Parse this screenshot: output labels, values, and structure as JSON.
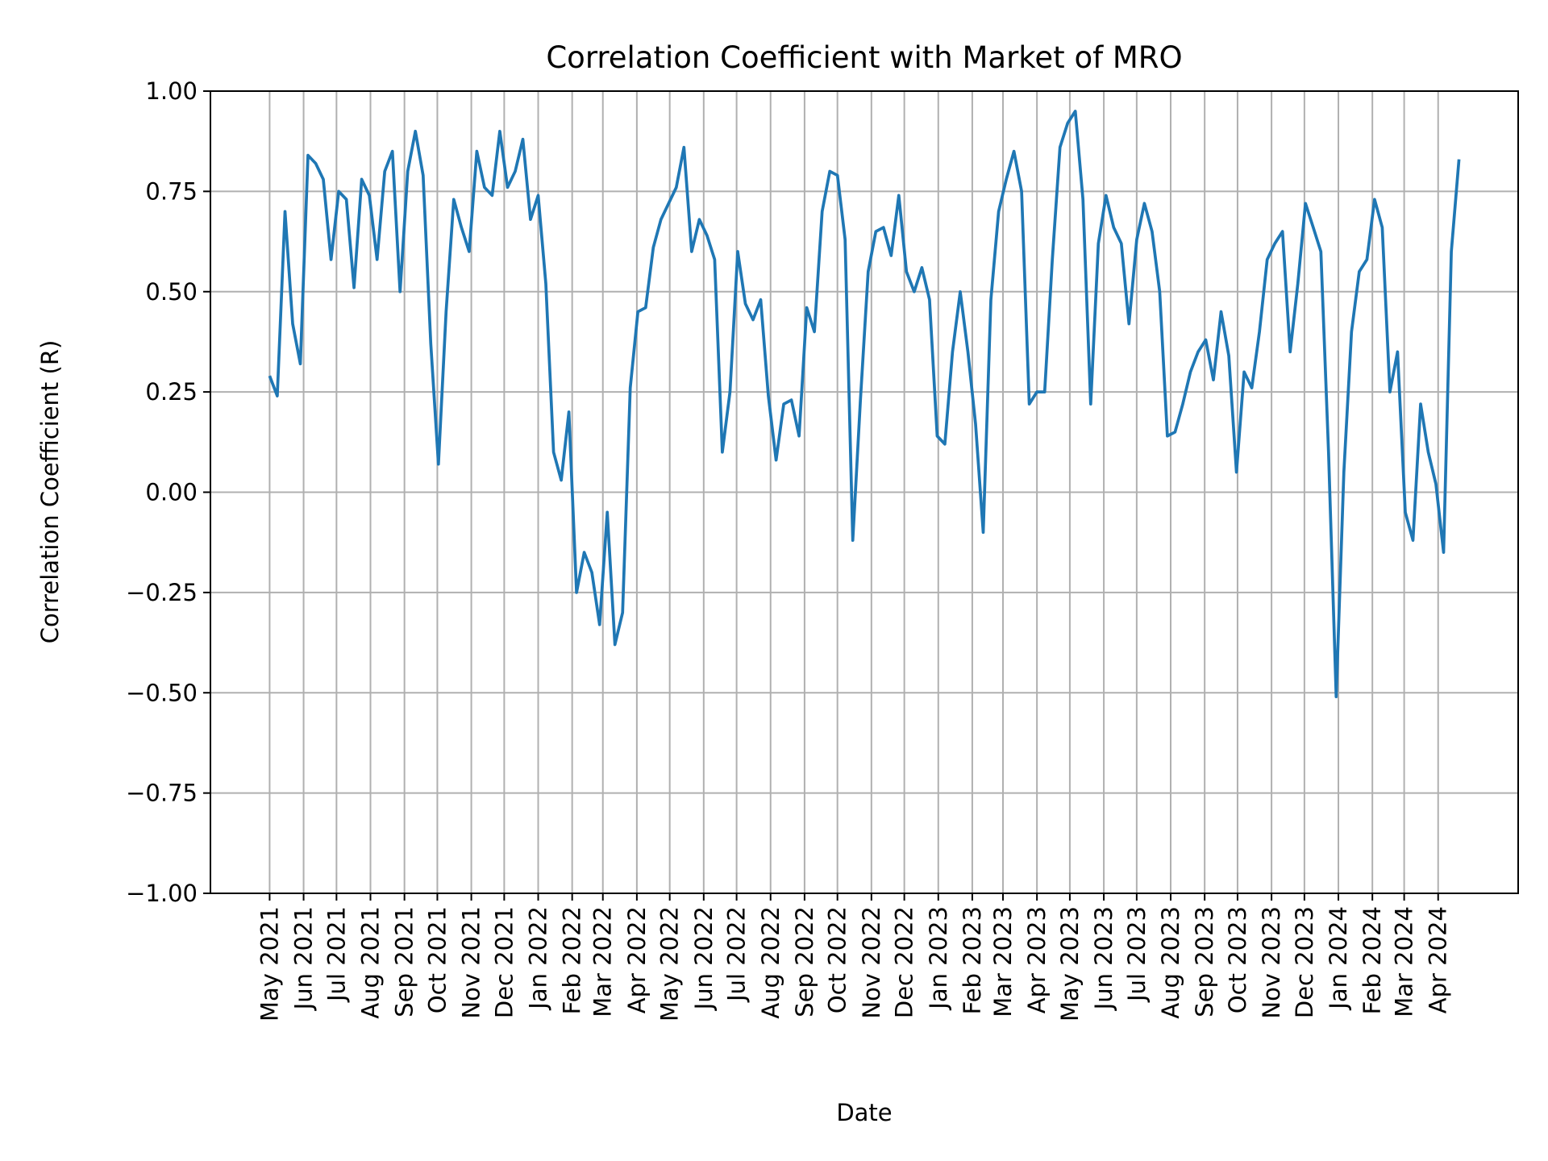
{
  "chart_data": {
    "type": "line",
    "title": "Correlation Coefficient with Market of MRO",
    "xlabel": "Date",
    "ylabel": "Correlation Coefficient (R)",
    "ylim": [
      -1.0,
      1.0
    ],
    "xlim": [
      "2021-03-08",
      "2024-06-13"
    ],
    "yticks": [
      -1.0,
      -0.75,
      -0.5,
      -0.25,
      0.0,
      0.25,
      0.5,
      0.75,
      1.0
    ],
    "ytick_labels": [
      "−1.00",
      "−0.75",
      "−0.50",
      "−0.25",
      "0.00",
      "0.25",
      "0.50",
      "0.75",
      "1.00"
    ],
    "xticks": [
      "2021-05-01",
      "2021-06-01",
      "2021-07-01",
      "2021-08-01",
      "2021-09-01",
      "2021-10-01",
      "2021-11-01",
      "2021-12-01",
      "2022-01-01",
      "2022-02-01",
      "2022-03-01",
      "2022-04-01",
      "2022-05-01",
      "2022-06-01",
      "2022-07-01",
      "2022-08-01",
      "2022-09-01",
      "2022-10-01",
      "2022-11-01",
      "2022-12-01",
      "2023-01-01",
      "2023-02-01",
      "2023-03-01",
      "2023-04-01",
      "2023-05-01",
      "2023-06-01",
      "2023-07-01",
      "2023-08-01",
      "2023-09-01",
      "2023-10-01",
      "2023-11-01",
      "2023-12-01",
      "2024-01-01",
      "2024-02-01",
      "2024-03-01",
      "2024-04-01"
    ],
    "xtick_labels": [
      "May 2021",
      "Jun 2021",
      "Jul 2021",
      "Aug 2021",
      "Sep 2021",
      "Oct 2021",
      "Nov 2021",
      "Dec 2021",
      "Jan 2022",
      "Feb 2022",
      "Mar 2022",
      "Apr 2022",
      "May 2022",
      "Jun 2022",
      "Jul 2022",
      "Aug 2022",
      "Sep 2022",
      "Oct 2022",
      "Nov 2022",
      "Dec 2022",
      "Jan 2023",
      "Feb 2023",
      "Mar 2023",
      "Apr 2023",
      "May 2023",
      "Jun 2023",
      "Jul 2023",
      "Aug 2023",
      "Sep 2023",
      "Oct 2023",
      "Nov 2023",
      "Dec 2023",
      "Jan 2024",
      "Feb 2024",
      "Mar 2024",
      "Apr 2024"
    ],
    "grid": true,
    "line_color": "#1f77b4",
    "grid_color": "#b0b0b0",
    "series": [
      {
        "x": [
          "2021-05-01",
          "2021-05-08",
          "2021-05-15",
          "2021-05-22",
          "2021-05-29",
          "2021-06-05",
          "2021-06-12",
          "2021-06-19",
          "2021-06-26",
          "2021-07-03",
          "2021-07-10",
          "2021-07-17",
          "2021-07-24",
          "2021-07-31",
          "2021-08-07",
          "2021-08-14",
          "2021-08-21",
          "2021-08-28",
          "2021-09-04",
          "2021-09-11",
          "2021-09-18",
          "2021-09-25",
          "2021-10-02",
          "2021-10-09",
          "2021-10-16",
          "2021-10-23",
          "2021-10-30",
          "2021-11-06",
          "2021-11-13",
          "2021-11-20",
          "2021-11-27",
          "2021-12-04",
          "2021-12-11",
          "2021-12-18",
          "2021-12-25",
          "2022-01-01",
          "2022-01-08",
          "2022-01-15",
          "2022-01-22",
          "2022-01-29",
          "2022-02-05",
          "2022-02-12",
          "2022-02-19",
          "2022-02-26",
          "2022-03-05",
          "2022-03-12",
          "2022-03-19",
          "2022-03-26",
          "2022-04-02",
          "2022-04-09",
          "2022-04-16",
          "2022-04-23",
          "2022-04-30",
          "2022-05-07",
          "2022-05-14",
          "2022-05-21",
          "2022-05-28",
          "2022-06-04",
          "2022-06-11",
          "2022-06-18",
          "2022-06-25",
          "2022-07-02",
          "2022-07-09",
          "2022-07-16",
          "2022-07-23",
          "2022-07-30",
          "2022-08-06",
          "2022-08-13",
          "2022-08-20",
          "2022-08-27",
          "2022-09-03",
          "2022-09-10",
          "2022-09-17",
          "2022-09-24",
          "2022-10-01",
          "2022-10-08",
          "2022-10-15",
          "2022-10-22",
          "2022-10-29",
          "2022-11-05",
          "2022-11-12",
          "2022-11-19",
          "2022-11-26",
          "2022-12-03",
          "2022-12-10",
          "2022-12-17",
          "2022-12-24",
          "2022-12-31",
          "2023-01-07",
          "2023-01-14",
          "2023-01-21",
          "2023-01-28",
          "2023-02-04",
          "2023-02-11",
          "2023-02-18",
          "2023-02-25",
          "2023-03-04",
          "2023-03-11",
          "2023-03-18",
          "2023-03-25",
          "2023-04-01",
          "2023-04-08",
          "2023-04-15",
          "2023-04-22",
          "2023-04-29",
          "2023-05-06",
          "2023-05-13",
          "2023-05-20",
          "2023-05-27",
          "2023-06-03",
          "2023-06-10",
          "2023-06-17",
          "2023-06-24",
          "2023-07-01",
          "2023-07-08",
          "2023-07-15",
          "2023-07-22",
          "2023-07-29",
          "2023-08-05",
          "2023-08-12",
          "2023-08-19",
          "2023-08-26",
          "2023-09-02",
          "2023-09-09",
          "2023-09-16",
          "2023-09-23",
          "2023-09-30",
          "2023-10-07",
          "2023-10-14",
          "2023-10-21",
          "2023-10-28",
          "2023-11-04",
          "2023-11-11",
          "2023-11-18",
          "2023-11-25",
          "2023-12-02",
          "2023-12-09",
          "2023-12-16",
          "2023-12-23",
          "2023-12-30",
          "2024-01-06",
          "2024-01-13",
          "2024-01-20",
          "2024-01-27",
          "2024-02-03",
          "2024-02-10",
          "2024-02-17",
          "2024-02-24",
          "2024-03-02",
          "2024-03-09",
          "2024-03-16",
          "2024-03-23",
          "2024-03-30",
          "2024-04-06",
          "2024-04-13",
          "2024-04-20"
        ],
        "y": [
          0.29,
          0.24,
          0.7,
          0.42,
          0.32,
          0.84,
          0.82,
          0.78,
          0.58,
          0.75,
          0.73,
          0.51,
          0.78,
          0.74,
          0.58,
          0.8,
          0.85,
          0.5,
          0.8,
          0.9,
          0.79,
          0.37,
          0.07,
          0.45,
          0.73,
          0.66,
          0.6,
          0.85,
          0.76,
          0.74,
          0.9,
          0.76,
          0.8,
          0.88,
          0.68,
          0.74,
          0.52,
          0.1,
          0.03,
          0.2,
          -0.25,
          -0.15,
          -0.2,
          -0.33,
          -0.05,
          -0.38,
          -0.3,
          0.26,
          0.45,
          0.46,
          0.61,
          0.68,
          0.72,
          0.76,
          0.86,
          0.6,
          0.68,
          0.64,
          0.58,
          0.1,
          0.25,
          0.6,
          0.47,
          0.43,
          0.48,
          0.24,
          0.08,
          0.22,
          0.23,
          0.14,
          0.46,
          0.4,
          0.7,
          0.8,
          0.79,
          0.63,
          -0.12,
          0.23,
          0.55,
          0.65,
          0.66,
          0.59,
          0.74,
          0.55,
          0.5,
          0.56,
          0.48,
          0.14,
          0.12,
          0.35,
          0.5,
          0.35,
          0.17,
          -0.1,
          0.48,
          0.7,
          0.78,
          0.85,
          0.75,
          0.22,
          0.25,
          0.25,
          0.58,
          0.86,
          0.92,
          0.95,
          0.73,
          0.22,
          0.62,
          0.74,
          0.66,
          0.62,
          0.42,
          0.63,
          0.72,
          0.65,
          0.5,
          0.14,
          0.15,
          0.22,
          0.3,
          0.35,
          0.38,
          0.28,
          0.45,
          0.34,
          0.05,
          0.3,
          0.26,
          0.4,
          0.58,
          0.62,
          0.65,
          0.35,
          0.52,
          0.72,
          0.66,
          0.6,
          0.1,
          -0.51,
          0.05,
          0.4,
          0.55,
          0.58,
          0.73,
          0.66,
          0.25,
          0.35,
          -0.05,
          -0.12,
          0.22,
          0.1,
          0.02,
          -0.15,
          0.6,
          0.83
        ]
      }
    ]
  }
}
